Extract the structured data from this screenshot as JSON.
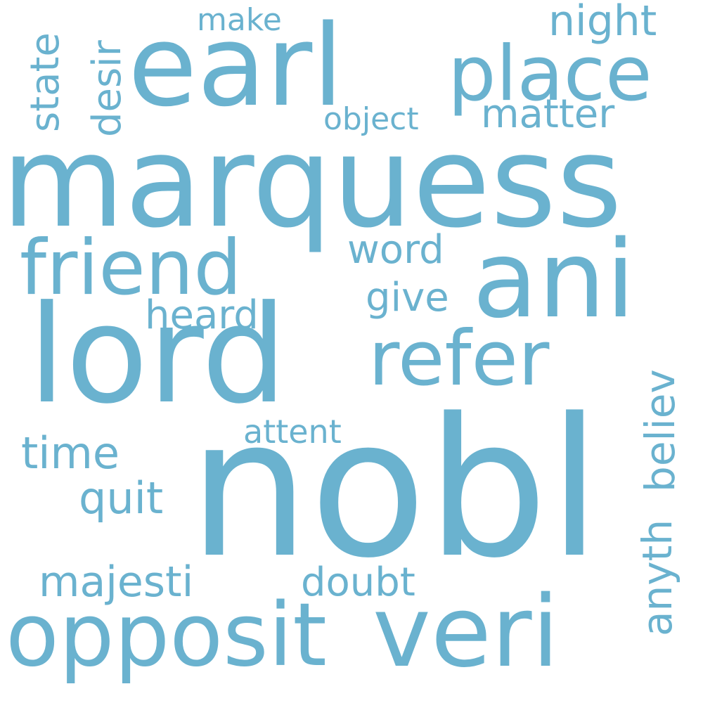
{
  "theme": {
    "word_color": "#6ab2cf",
    "background": "#ffffff"
  },
  "words": {
    "marquess": "marquess",
    "nobl": "nobl",
    "lord": "lord",
    "earl": "earl",
    "ani": "ani",
    "opposit": "opposit",
    "veri": "veri",
    "friend": "friend",
    "refer": "refer",
    "place": "place",
    "night": "night",
    "make": "make",
    "state": "state",
    "desir": "desir",
    "matter": "matter",
    "object": "object",
    "word": "word",
    "give": "give",
    "heard": "heard",
    "believ": "believ",
    "attent": "attent",
    "time": "time",
    "quit": "quit",
    "anyth": "anyth",
    "majesti": "majesti",
    "doubt": "doubt"
  }
}
